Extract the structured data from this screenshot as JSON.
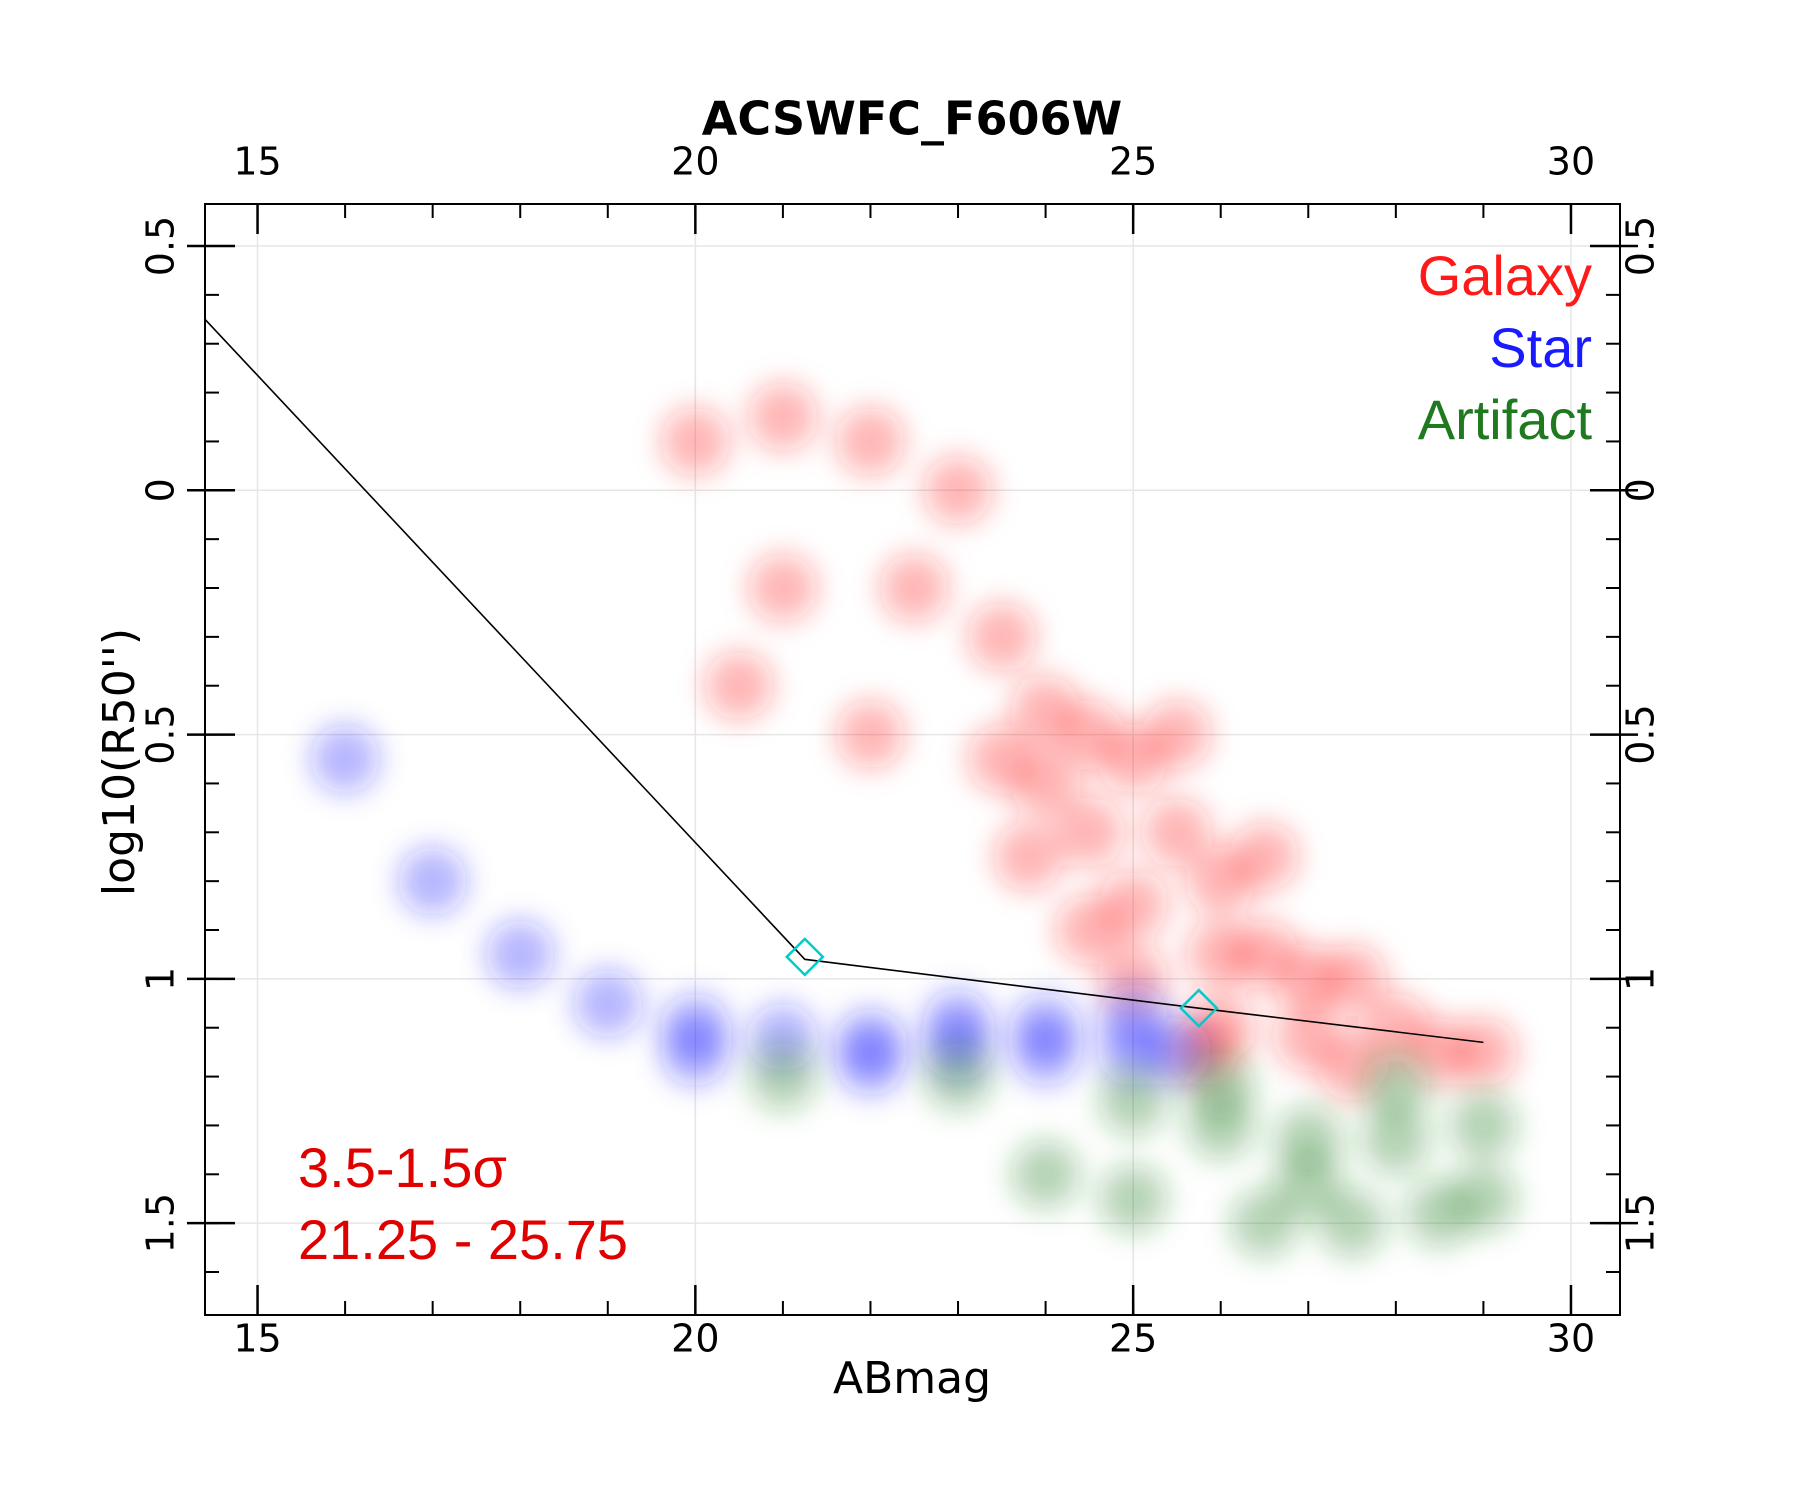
{
  "chart_data": {
    "type": "scatter",
    "title": "ACSWFC_F606W",
    "x_label": "ABmag",
    "y_label": "log10(R50'')",
    "xlim": [
      14.4,
      30.56
    ],
    "ylim": [
      -1.688,
      0.586
    ],
    "xticks": [
      15,
      20,
      25,
      30
    ],
    "yticks": [
      0.5,
      0,
      {
        "value": -0.5,
        "label": "0.5"
      },
      {
        "value": -1,
        "label": "1"
      },
      {
        "value": -1.5,
        "label": "1.5"
      }
    ],
    "xminorticks": [
      15,
      16,
      17,
      18,
      19,
      20,
      21,
      22,
      23,
      24,
      25,
      26,
      27,
      28,
      29,
      30
    ],
    "yminorticks": [
      0.5,
      0.4,
      0.3,
      0.2,
      0.1,
      0,
      -0.1,
      -0.2,
      -0.3,
      -0.4,
      -0.5,
      -0.6,
      -0.7,
      -0.8,
      -0.9,
      -1,
      -1.1,
      -1.2,
      -1.3,
      -1.4,
      -1.5,
      -1.6
    ],
    "grid": true,
    "legend": "upper right",
    "series": [
      {
        "name": "Galaxy",
        "color": "#ff1a1a",
        "x": [
          20,
          21,
          22,
          21,
          22.5,
          23,
          20.5,
          22,
          23.5,
          24,
          24.5,
          25,
          24.5,
          25.5,
          25,
          26,
          26,
          26.5,
          27,
          26,
          27,
          28,
          28.5,
          25.8,
          27.5,
          26.5,
          25.5,
          24,
          23.5,
          23.8,
          24.5,
          25,
          29,
          27.5
        ],
        "y": [
          0.1,
          0.15,
          0.1,
          -0.2,
          -0.2,
          0,
          -0.4,
          -0.5,
          -0.3,
          -0.45,
          -0.5,
          -0.55,
          -0.7,
          -0.7,
          -0.85,
          -0.8,
          -0.95,
          -0.95,
          -1.0,
          -1.1,
          -1.12,
          -1.1,
          -1.15,
          -1.15,
          -1.0,
          -0.75,
          -0.5,
          -0.6,
          -0.55,
          -0.75,
          -0.9,
          -1.0,
          -1.15,
          -1.18
        ]
      },
      {
        "name": "Star",
        "color": "#1a1aff",
        "x": [
          16,
          17,
          18,
          19,
          20,
          21,
          22,
          23,
          24,
          25,
          25.5,
          22,
          24,
          25,
          23,
          20
        ],
        "y": [
          -0.55,
          -0.8,
          -0.95,
          -1.05,
          -1.1,
          -1.12,
          -1.13,
          -1.14,
          -1.15,
          -1.15,
          -1.15,
          -1.17,
          -1.1,
          -1.08,
          -1.09,
          -1.15
        ]
      },
      {
        "name": "Artifact",
        "color": "#1f7a1f",
        "x": [
          21,
          23,
          25,
          26,
          27,
          28,
          29,
          26.5,
          27.5,
          28.5,
          25,
          24,
          29,
          27,
          26,
          28
        ],
        "y": [
          -1.2,
          -1.2,
          -1.25,
          -1.3,
          -1.33,
          -1.33,
          -1.3,
          -1.5,
          -1.5,
          -1.48,
          -1.45,
          -1.4,
          -1.45,
          -1.42,
          -1.22,
          -1.22
        ]
      }
    ],
    "line": {
      "color": "#000000",
      "x": [
        14.4,
        21.25,
        25.75,
        29.0
      ],
      "y": [
        0.35,
        -0.96,
        -1.06,
        -1.13
      ]
    },
    "markers": {
      "color": "#00cccc",
      "x": [
        21.25,
        25.75
      ],
      "y": [
        -0.955,
        -1.06
      ]
    },
    "annotations": [
      "3.5-1.5σ",
      "21.25 - 25.75"
    ]
  }
}
